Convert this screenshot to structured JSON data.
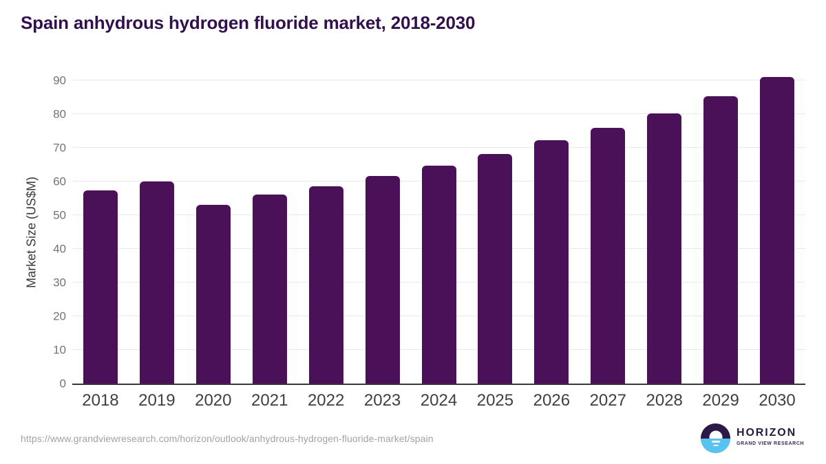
{
  "chart_data": {
    "type": "bar",
    "title": "Spain anhydrous hydrogen fluoride market, 2018-2030",
    "xlabel": "",
    "ylabel": "Market Size (US$M)",
    "categories": [
      "2018",
      "2019",
      "2020",
      "2021",
      "2022",
      "2023",
      "2024",
      "2025",
      "2026",
      "2027",
      "2028",
      "2029",
      "2030"
    ],
    "values": [
      57.2,
      59.9,
      53.0,
      56.0,
      58.5,
      61.5,
      64.7,
      68.2,
      72.2,
      75.9,
      80.2,
      85.3,
      90.9
    ],
    "yticks": [
      0,
      10,
      20,
      30,
      40,
      50,
      60,
      70,
      80,
      90
    ],
    "ylim": [
      0,
      94
    ],
    "grid": "horizontal",
    "legend_position": "none",
    "bar_color": "#4a1158"
  },
  "footer": {
    "source_url": "https://www.grandviewresearch.com/horizon/outlook/anhydrous-hydrogen-fluoride-market/spain",
    "logo": {
      "name": "HORIZON",
      "subtitle": "GRAND VIEW RESEARCH",
      "icon": "horizon-sunset-circle-icon",
      "purple": "#2b1a47",
      "blue": "#57c3f0"
    }
  },
  "colors": {
    "title_text": "#32104d",
    "bar": "#4a1158",
    "axis_line": "#37373b",
    "gridline": "#e9e9eb",
    "y_tick_text": "#737373",
    "x_tick_text": "#3f3f3f",
    "url_text": "#a2a2a2"
  }
}
